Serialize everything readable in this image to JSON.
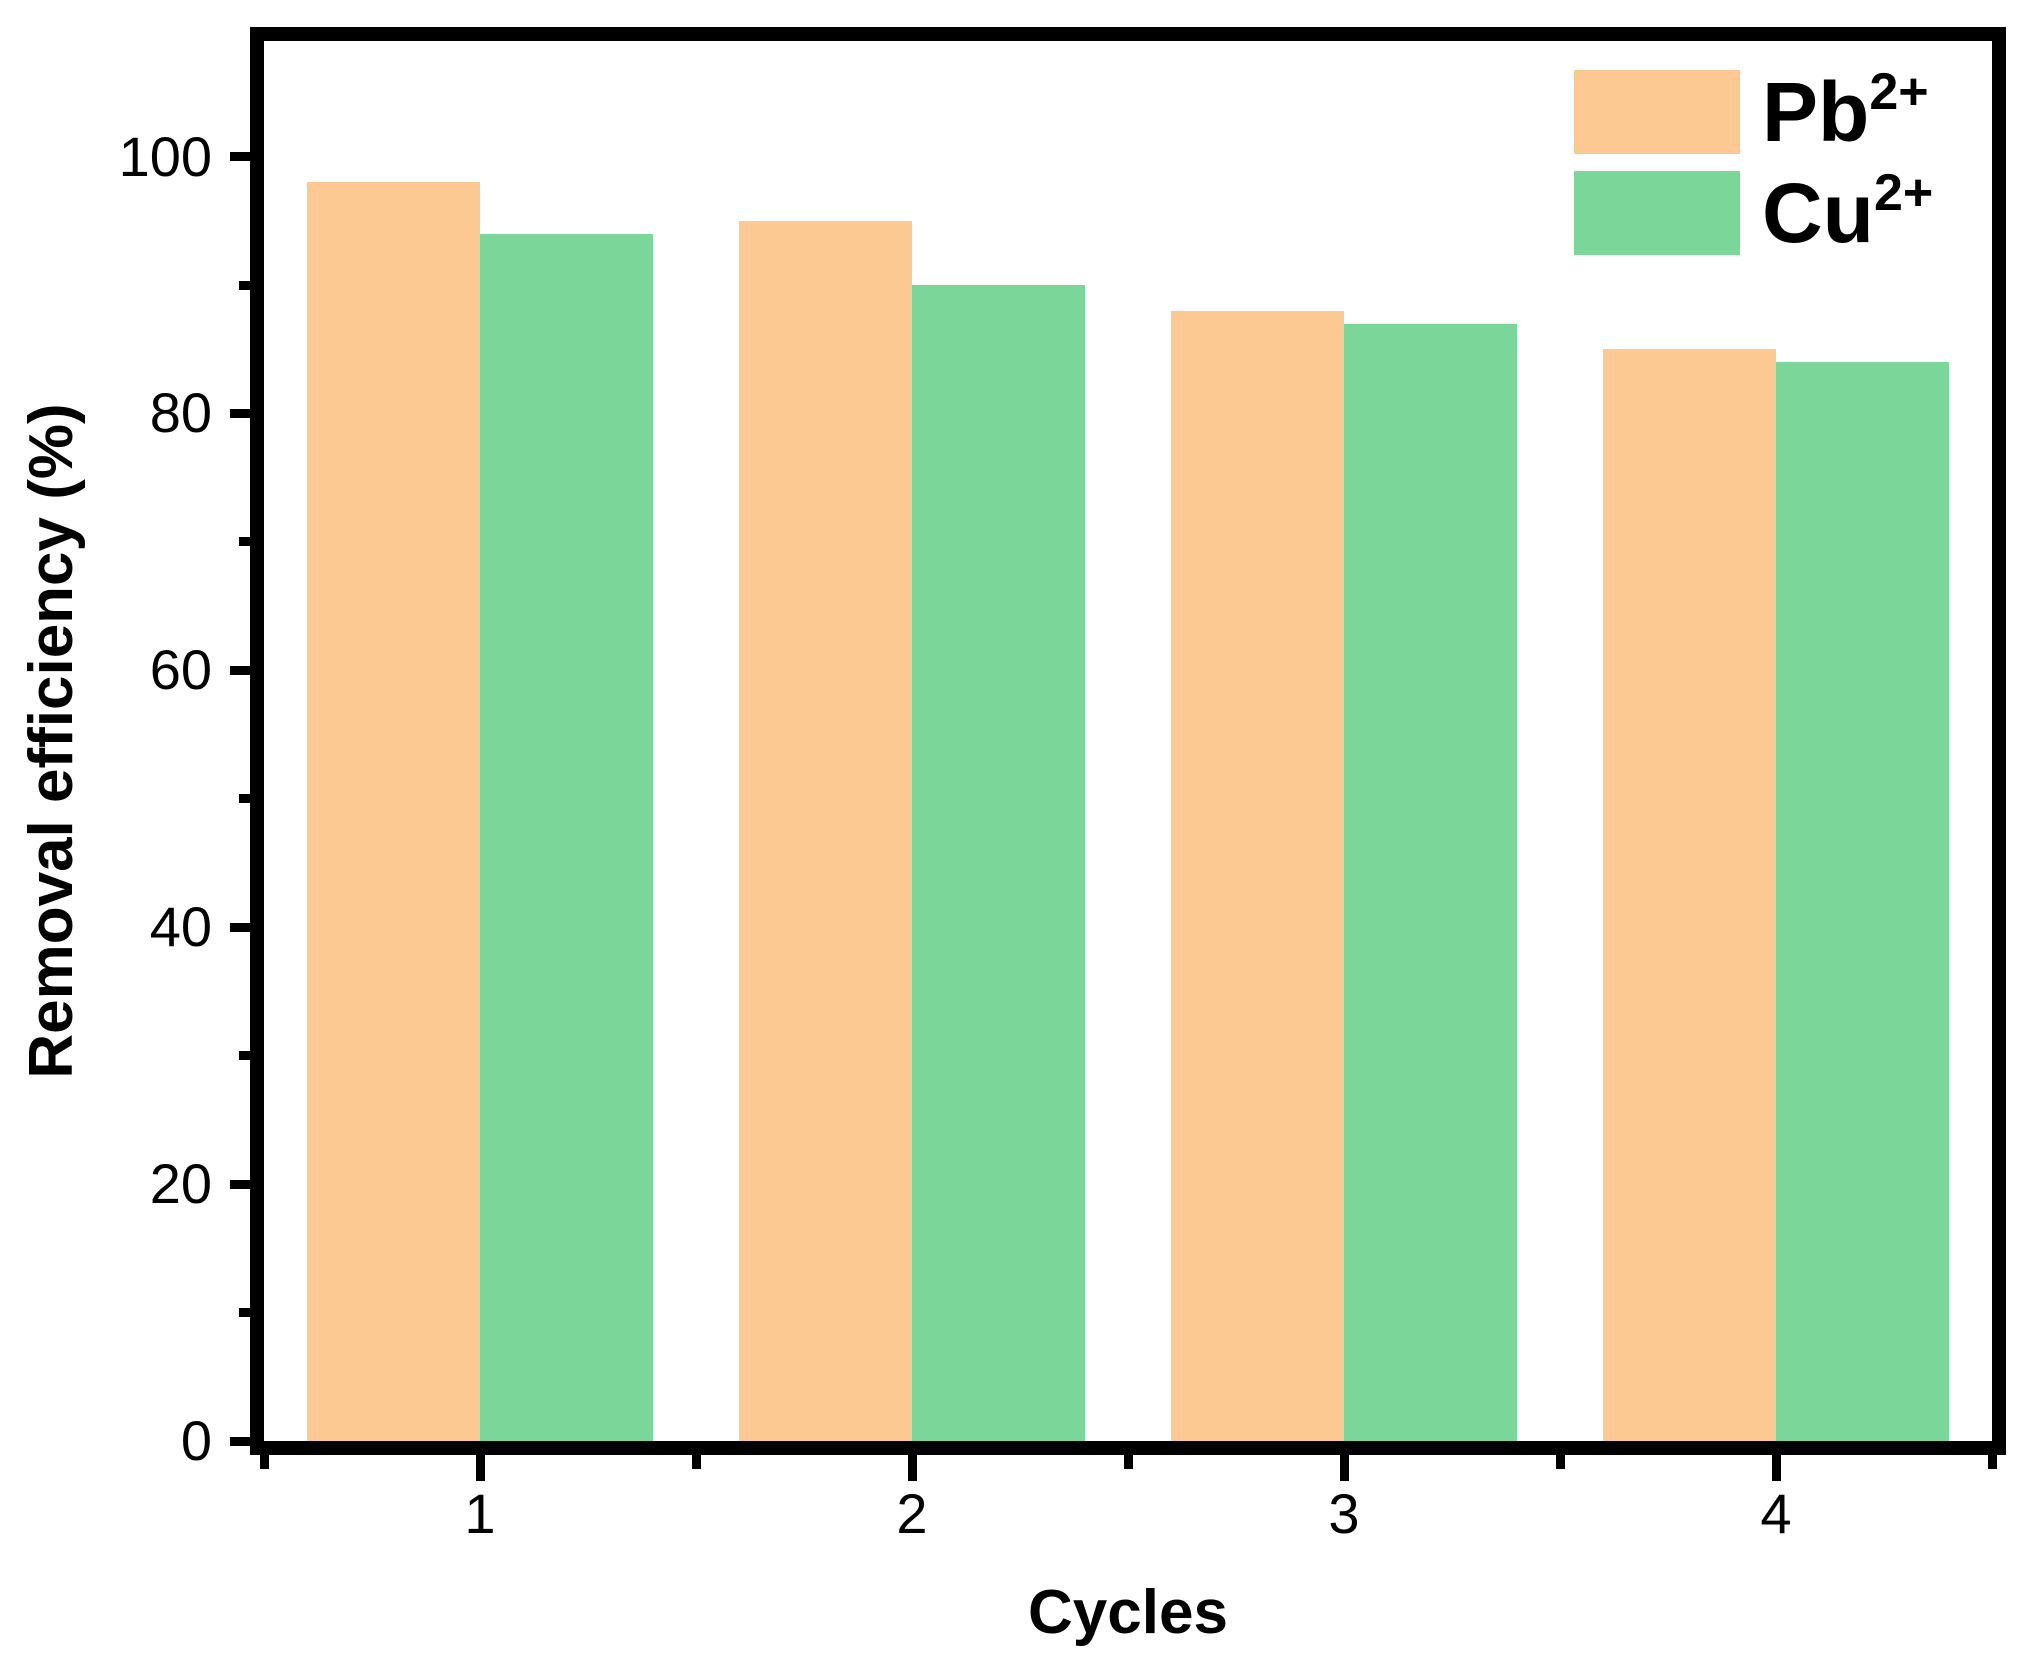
{
  "chart_data": {
    "type": "bar",
    "title": "",
    "xlabel": "Cycles",
    "ylabel": "Removal efficiency (%)",
    "categories": [
      1,
      2,
      3,
      4
    ],
    "series": [
      {
        "name": "Pb2+",
        "label_base": "Pb",
        "label_sup": "2+",
        "color": "#FDC992",
        "values": [
          98,
          95,
          88,
          85
        ]
      },
      {
        "name": "Cu2+",
        "label_base": "Cu",
        "label_sup": "2+",
        "color": "#7BD69A",
        "values": [
          94,
          90,
          87,
          84
        ]
      }
    ],
    "ylim": [
      0,
      109
    ],
    "xlim": [
      0.5,
      4.5
    ],
    "yticks": [
      0,
      20,
      40,
      60,
      80,
      100
    ],
    "yticks_minor": [
      10,
      30,
      50,
      70,
      90
    ],
    "xticks": [
      1,
      2,
      3,
      4
    ],
    "xticks_minor": [
      0.5,
      1.5,
      2.5,
      3.5,
      4.5
    ],
    "bar_width": 0.4,
    "grid": false,
    "legend_position": "top-right",
    "axis_color": "#000000",
    "background": "#FFFFFF"
  }
}
